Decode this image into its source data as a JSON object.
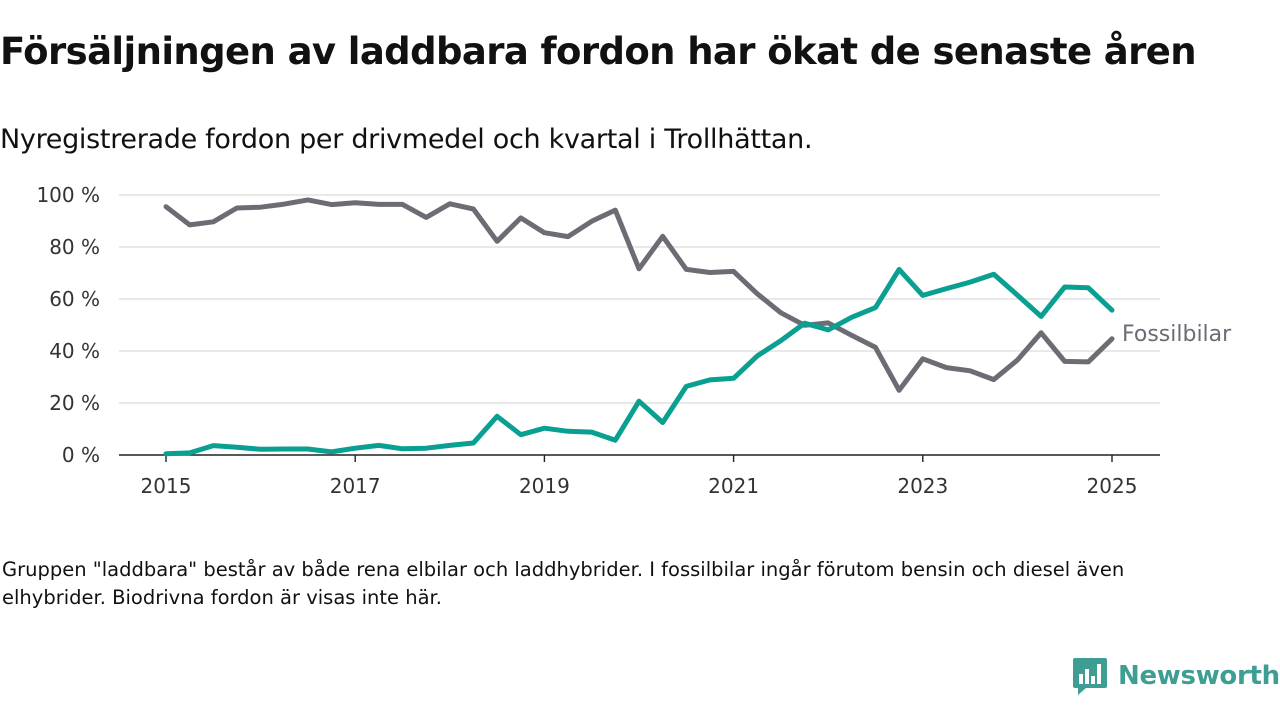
{
  "header": {
    "title": "Försäljningen av laddbara fordon har ökat de senaste åren",
    "subtitle": "Nyregistrerade fordon per drivmedel och kvartal i Trollhättan."
  },
  "footer": {
    "note": "Gruppen \"laddbara\" består av både rena elbilar och laddhybrider. I fossilbilar ingår förutom bensin och diesel även elhybrider. Biodrivna fordon är visas inte här.",
    "brand": "Newsworthy",
    "brand_icon": "newsworthy-chart-logo-icon"
  },
  "chart_data": {
    "type": "line",
    "x_ticks": [
      2015,
      2017,
      2019,
      2021,
      2023,
      2025
    ],
    "x_range": [
      2015,
      2025
    ],
    "y_ticks": [
      0,
      20,
      40,
      60,
      80,
      100
    ],
    "y_tick_labels": [
      "0 %",
      "20 %",
      "40 %",
      "60 %",
      "80 %",
      "100 %"
    ],
    "ylim": [
      0,
      100
    ],
    "grid": true,
    "x": [
      2015.0,
      2015.25,
      2015.5,
      2015.75,
      2016.0,
      2016.25,
      2016.5,
      2016.75,
      2017.0,
      2017.25,
      2017.5,
      2017.75,
      2018.0,
      2018.25,
      2018.5,
      2018.75,
      2019.0,
      2019.25,
      2019.5,
      2019.75,
      2020.0,
      2020.25,
      2020.5,
      2020.75,
      2021.0,
      2021.25,
      2021.5,
      2021.75,
      2022.0,
      2022.25,
      2022.5,
      2022.75,
      2023.0,
      2023.25,
      2023.5,
      2023.75,
      2024.0,
      2024.25,
      2024.5,
      2024.75,
      2025.0
    ],
    "series": [
      {
        "name": "Fossilbilar",
        "color": "#6c6c75",
        "labeled": true,
        "values": [
          95.5,
          88.5,
          89.7,
          95.0,
          95.3,
          96.5,
          98.1,
          96.3,
          97.0,
          96.4,
          96.4,
          91.4,
          96.6,
          94.6,
          82.2,
          91.2,
          85.5,
          84.0,
          89.9,
          94.2,
          71.6,
          84.1,
          71.4,
          70.2,
          70.6,
          62.0,
          54.7,
          49.9,
          50.8,
          46.0,
          41.4,
          24.9,
          37.0,
          33.6,
          32.4,
          29.0,
          36.5,
          47.0,
          36.0,
          35.8,
          44.7
        ]
      },
      {
        "values": [
          0.5,
          0.8,
          3.6,
          3.0,
          2.2,
          2.3,
          2.3,
          1.2,
          2.6,
          3.7,
          2.4,
          2.6,
          3.7,
          4.6,
          14.9,
          7.8,
          10.3,
          9.1,
          8.8,
          5.7,
          20.7,
          12.5,
          26.4,
          28.9,
          29.5,
          38.1,
          44.0,
          50.7,
          48.1,
          53.0,
          56.7,
          71.4,
          61.4,
          64.0,
          66.5,
          69.5,
          61.5,
          53.3,
          64.6,
          64.3,
          55.7
        ],
        "color": "#09a091"
      }
    ]
  }
}
